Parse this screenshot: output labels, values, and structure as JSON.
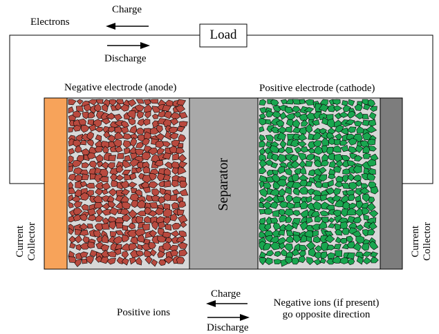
{
  "top": {
    "electrons_label": "Electrons",
    "charge_label": "Charge",
    "discharge_label": "Discharge",
    "load_label": "Load"
  },
  "cell": {
    "anode_label": "Negative electrode (anode)",
    "cathode_label": "Positive electrode (cathode)",
    "separator_label": "Separator",
    "left_collector": [
      "Current",
      "Collector"
    ],
    "right_collector": [
      "Current",
      "Collector"
    ]
  },
  "bottom": {
    "positive_ions_label": "Positive ions",
    "charge_label": "Charge",
    "discharge_label": "Discharge",
    "negative_ions_line1": "Negative ions (if present)",
    "negative_ions_line2": "go opposite direction"
  },
  "colors": {
    "anode_particle": "#b94a3f",
    "cathode_particle": "#19a64f",
    "separator": "#a9a9a9",
    "left_collector": "#f7a35a",
    "right_collector": "#7d7d7d",
    "electrode_background": "#d8d8d8"
  }
}
